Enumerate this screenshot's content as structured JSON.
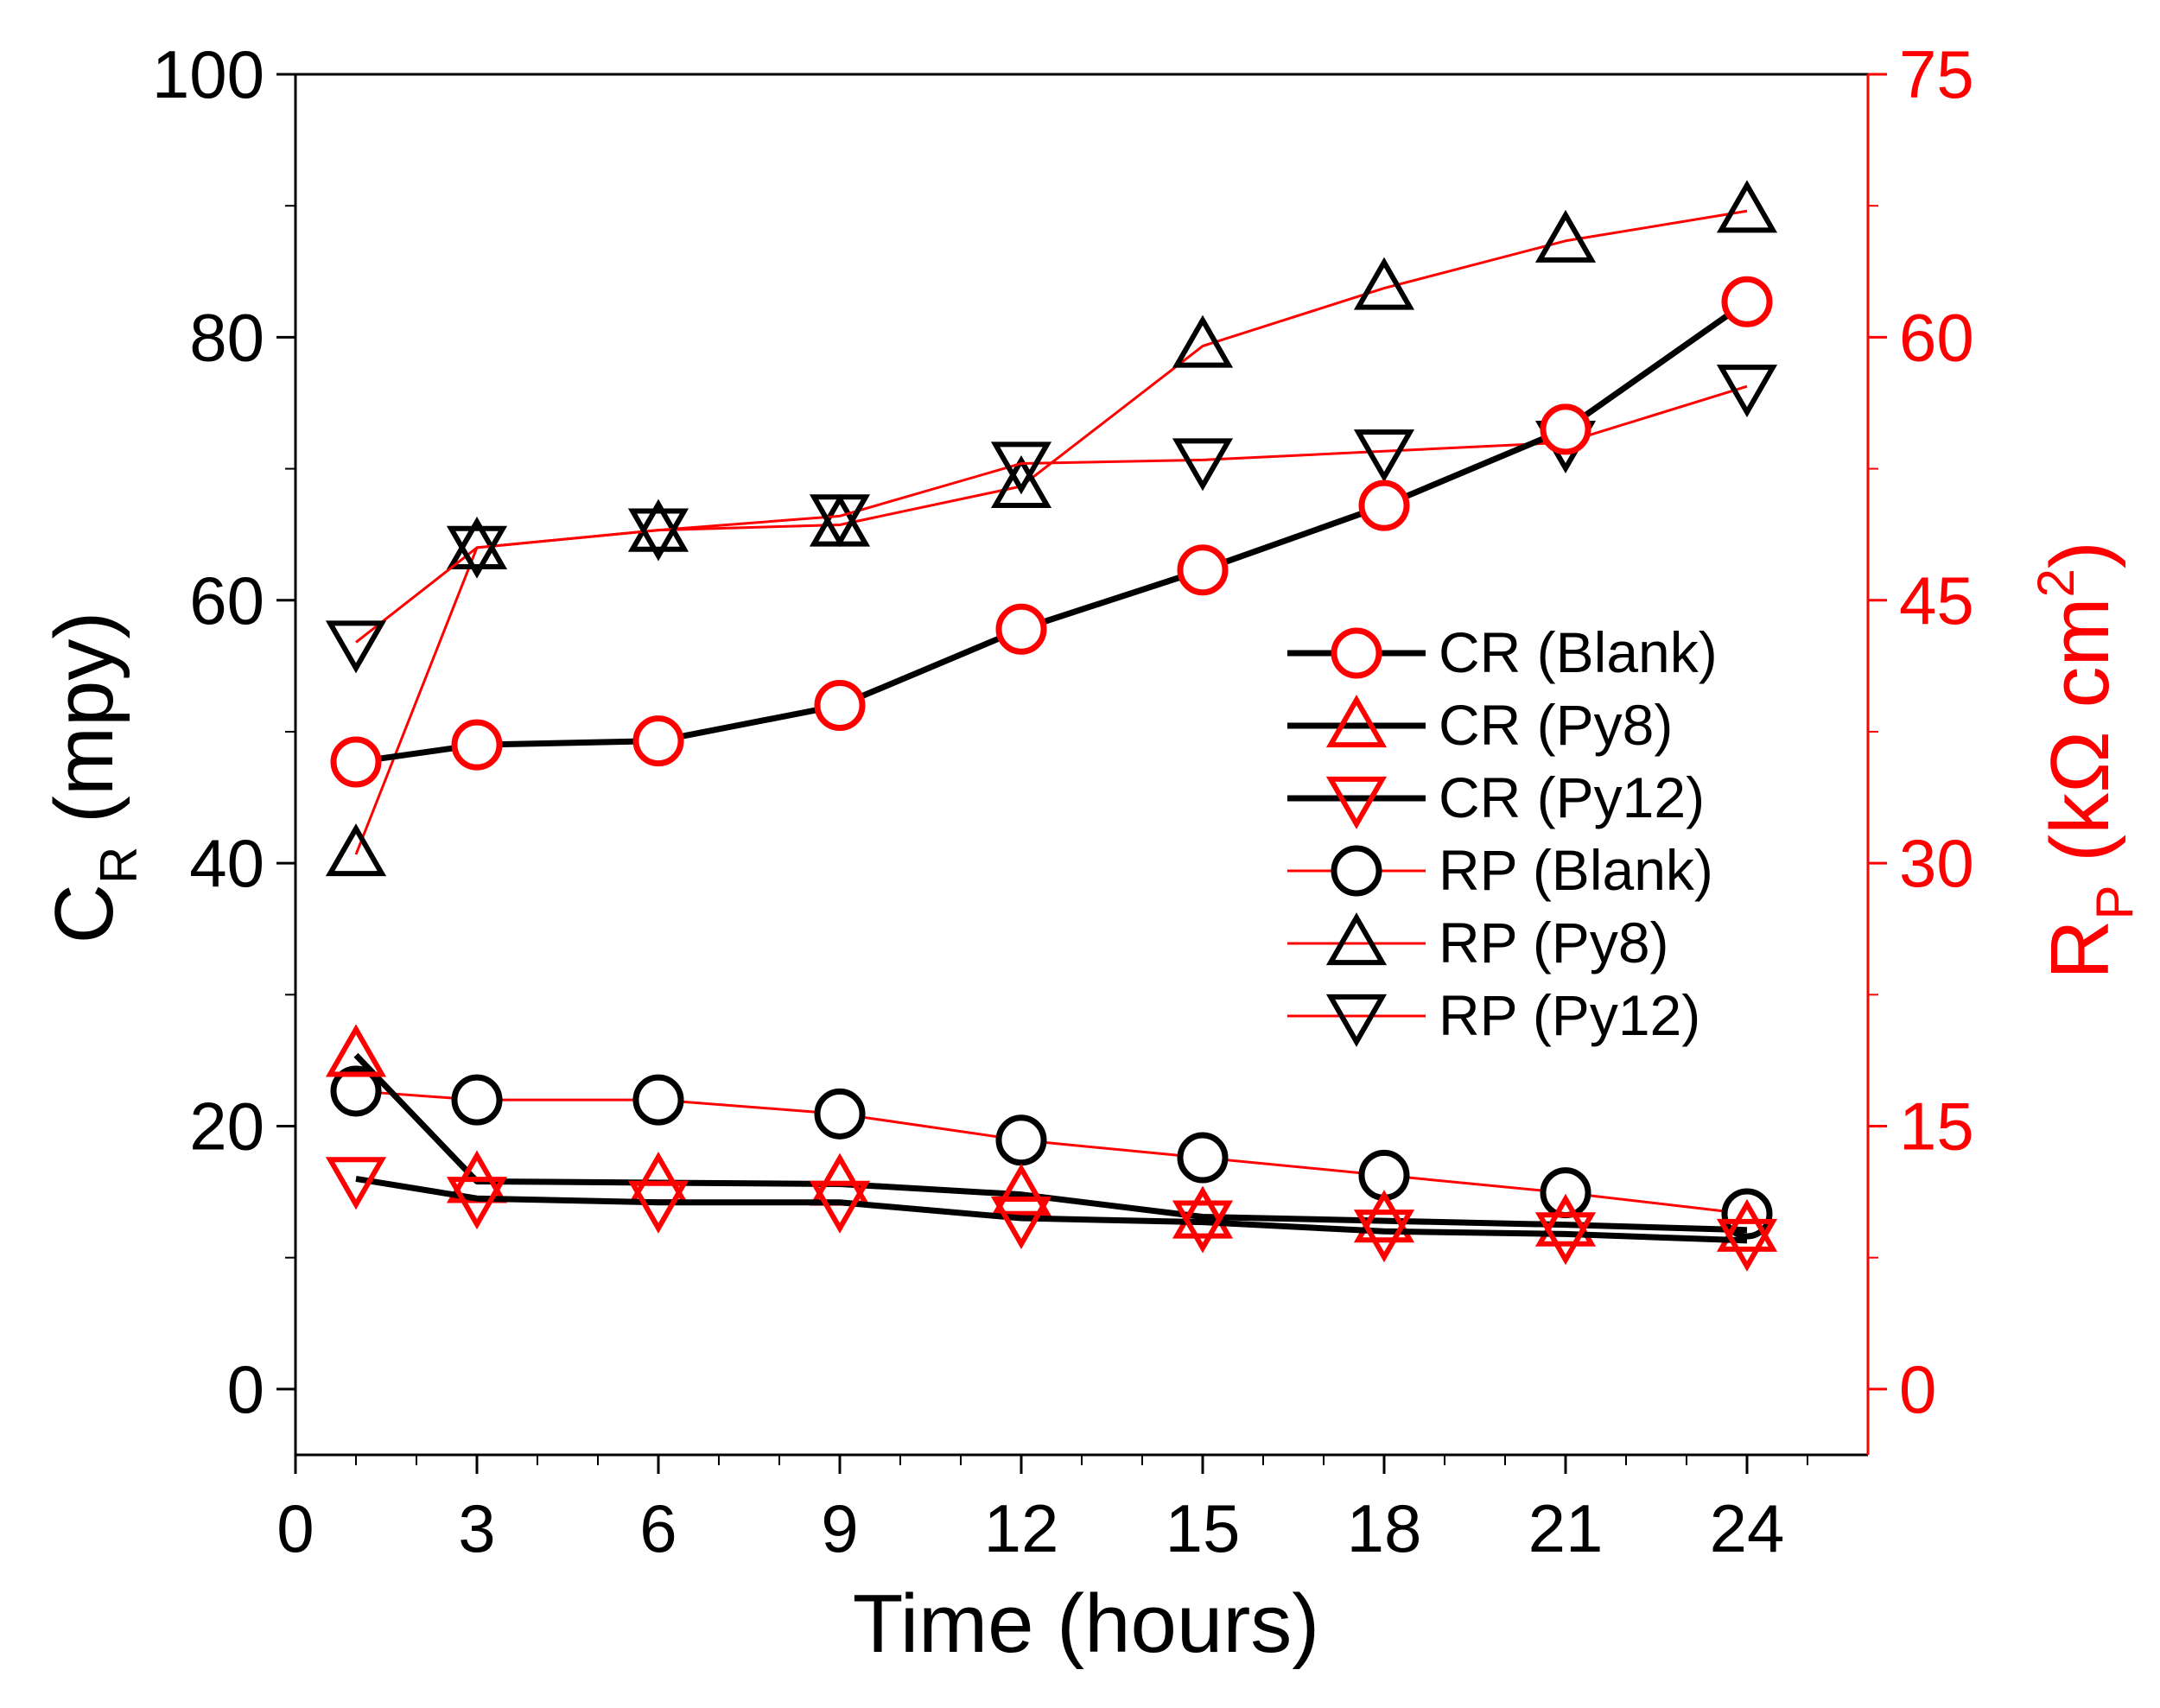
{
  "chart_data": {
    "type": "line",
    "xlabel": "Time (hours)",
    "x_ticks": [
      0,
      3,
      6,
      9,
      12,
      15,
      18,
      21,
      24
    ],
    "xlim": [
      0,
      26
    ],
    "y_left": {
      "label_main": "C",
      "label_sub": "R",
      "label_rest": " (mpy)",
      "ticks": [
        0,
        20,
        40,
        60,
        80,
        100
      ],
      "lim": [
        -5,
        100
      ],
      "color": "#000000"
    },
    "y_right": {
      "label_main": "R",
      "label_sub": "P",
      "label_rest": " (k",
      "label_omega": "Ω",
      "label_cm": " cm",
      "label_sup": "2",
      "label_close": ")",
      "ticks": [
        0,
        15,
        30,
        45,
        60,
        75
      ],
      "lim": [
        -3.75,
        75
      ],
      "color": "#ff0000"
    },
    "x": [
      1,
      3,
      6,
      9,
      12,
      15,
      18,
      21,
      24
    ],
    "series": [
      {
        "name": "CR (Blank)",
        "axis": "left",
        "line_color": "#000000",
        "marker": "circle",
        "marker_color": "#ff0000",
        "line_width": 7,
        "values": [
          47.7,
          49.0,
          49.3,
          52.0,
          57.8,
          62.3,
          67.2,
          73.0,
          82.7
        ]
      },
      {
        "name": "CR (Py8)",
        "axis": "left",
        "line_color": "#000000",
        "marker": "triangle-up",
        "marker_color": "#ff0000",
        "line_width": 7,
        "values": [
          25.4,
          15.8,
          15.7,
          15.6,
          14.8,
          13.1,
          12.8,
          12.5,
          12.1
        ]
      },
      {
        "name": "CR (Py12)",
        "axis": "left",
        "line_color": "#000000",
        "marker": "triangle-down",
        "marker_color": "#ff0000",
        "line_width": 7,
        "values": [
          16.0,
          14.5,
          14.2,
          14.2,
          13.0,
          12.7,
          12.0,
          11.8,
          11.3
        ]
      },
      {
        "name": "RP (Blank)",
        "axis": "right",
        "line_color": "#ff0000",
        "marker": "circle",
        "marker_color": "#000000",
        "line_width": 3,
        "values": [
          17.0,
          16.5,
          16.5,
          15.7,
          14.2,
          13.2,
          12.2,
          11.2,
          10.0
        ]
      },
      {
        "name": "RP (Py8)",
        "axis": "right",
        "line_color": "#ff0000",
        "marker": "triangle-up",
        "marker_color": "#000000",
        "line_width": 3,
        "values": [
          30.5,
          48.0,
          49.0,
          49.3,
          51.5,
          59.5,
          62.8,
          65.5,
          67.2
        ]
      },
      {
        "name": "RP (Py12)",
        "axis": "right",
        "line_color": "#ff0000",
        "marker": "triangle-down",
        "marker_color": "#000000",
        "line_width": 3,
        "values": [
          42.6,
          48.0,
          49.0,
          49.8,
          52.8,
          53.0,
          53.5,
          54.0,
          57.2
        ]
      }
    ],
    "legend_position": "center-right"
  }
}
